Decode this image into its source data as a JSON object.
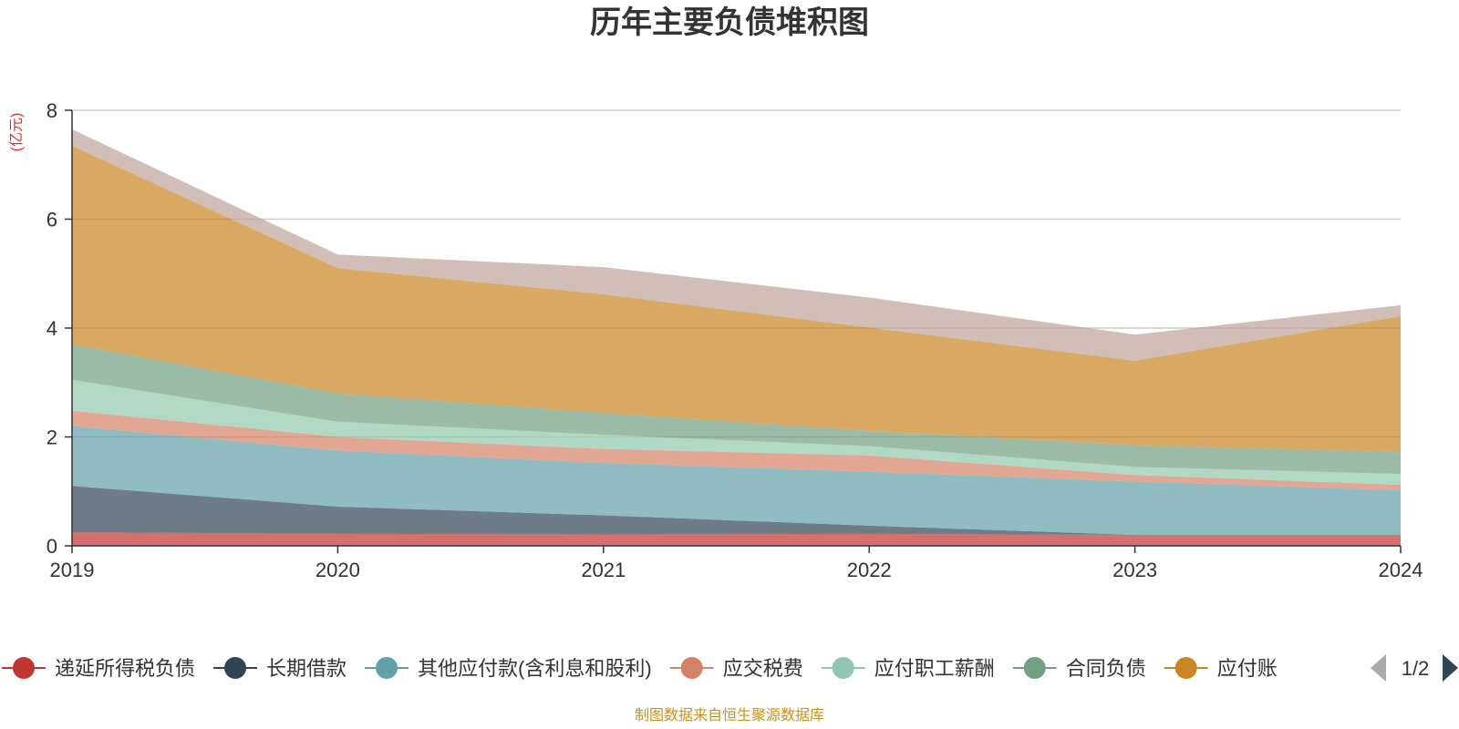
{
  "chart_data": {
    "type": "area",
    "title": "历年主要负债堆积图",
    "unit_label": "(亿元)",
    "x": [
      "2019",
      "2020",
      "2021",
      "2022",
      "2023",
      "2024"
    ],
    "ylim": [
      0,
      8
    ],
    "yticks": [
      "0",
      "2",
      "4",
      "6",
      "8"
    ],
    "grid": true,
    "stacked": true,
    "legend_position": "bottom",
    "series": [
      {
        "name": "递延所得税负债",
        "color": "#c23531",
        "values": [
          0.25,
          0.22,
          0.21,
          0.22,
          0.2,
          0.2
        ]
      },
      {
        "name": "长期借款",
        "color": "#2f4554",
        "values": [
          0.85,
          0.5,
          0.35,
          0.15,
          0.0,
          0.0
        ]
      },
      {
        "name": "其他应付款(含利息和股利)",
        "color": "#61a0a8",
        "values": [
          1.1,
          1.03,
          0.96,
          0.99,
          0.98,
          0.82
        ]
      },
      {
        "name": "应交税费",
        "color": "#d48265",
        "values": [
          0.28,
          0.25,
          0.26,
          0.3,
          0.12,
          0.1
        ]
      },
      {
        "name": "应付职工薪酬",
        "color": "#91c7ae",
        "values": [
          0.57,
          0.28,
          0.26,
          0.17,
          0.15,
          0.2
        ]
      },
      {
        "name": "合同负债",
        "color": "#749f83",
        "values": [
          0.65,
          0.52,
          0.4,
          0.28,
          0.4,
          0.4
        ]
      },
      {
        "name": "应付账款",
        "color": "#ca8622",
        "values": [
          3.65,
          2.3,
          2.18,
          1.9,
          1.55,
          2.5
        ]
      },
      {
        "name": "",
        "color": "#bda29a",
        "values": [
          0.3,
          0.25,
          0.5,
          0.55,
          0.48,
          0.2
        ]
      }
    ],
    "legend_visible": [
      "递延所得税负债",
      "长期借款",
      "其他应付款(含利息和股利)",
      "应交税费",
      "应付职工薪酬",
      "合同负债",
      "应付账"
    ],
    "pager": "1/2"
  },
  "source": "制图数据来自恒生聚源数据库",
  "colors": {
    "axis": "#333333",
    "grid": "#cccccc",
    "unit": "#e03030",
    "source": "#c8921e",
    "pager_active": "#2f4554",
    "pager_inactive": "#aaaaaa"
  }
}
